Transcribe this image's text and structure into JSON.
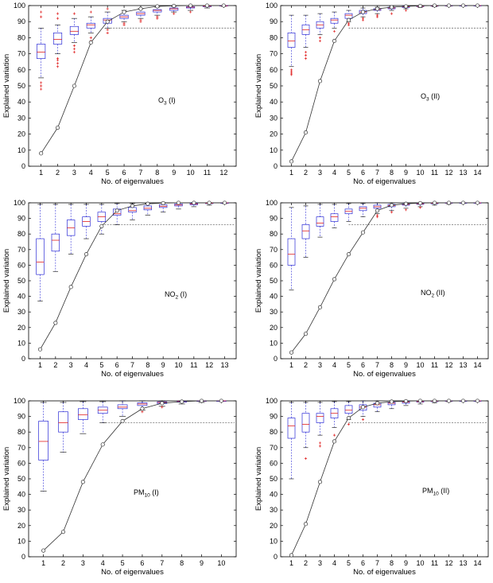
{
  "chart_data": [
    {
      "type": "box",
      "label": {
        "main": "O",
        "sub": "3",
        "suffix": " (I)"
      },
      "xlabel": "No. of eigenvalues",
      "ylabel": "Explained variation",
      "ylim": [
        0,
        100
      ],
      "yticks": [
        0,
        10,
        20,
        30,
        40,
        50,
        60,
        70,
        80,
        90,
        100
      ],
      "x": [
        1,
        2,
        3,
        4,
        5,
        6,
        7,
        8,
        9,
        10,
        11,
        12
      ],
      "threshold": 86,
      "boxes": [
        {
          "min": 55,
          "q1": 67,
          "median": 71,
          "q3": 76,
          "max": 86,
          "outliers": [
            48,
            50,
            52,
            93,
            96
          ]
        },
        {
          "min": 70,
          "q1": 76,
          "median": 79,
          "q3": 83,
          "max": 88,
          "outliers": [
            62,
            64,
            66,
            67,
            92,
            95
          ]
        },
        {
          "min": 77,
          "q1": 82,
          "median": 84,
          "q3": 87,
          "max": 92,
          "outliers": [
            71,
            73,
            75,
            95
          ]
        },
        {
          "min": 83,
          "q1": 86,
          "median": 88,
          "q3": 89,
          "max": 93,
          "outliers": [
            78,
            80,
            96
          ]
        },
        {
          "min": 86,
          "q1": 89,
          "median": 91,
          "q3": 92,
          "max": 96,
          "outliers": [
            83,
            85,
            98
          ]
        },
        {
          "min": 90,
          "q1": 92,
          "median": 93,
          "q3": 94,
          "max": 97,
          "outliers": [
            88,
            89
          ]
        },
        {
          "min": 92,
          "q1": 94,
          "median": 95,
          "q3": 96,
          "max": 98,
          "outliers": [
            90,
            91
          ]
        },
        {
          "min": 94,
          "q1": 96,
          "median": 97,
          "q3": 97.5,
          "max": 99,
          "outliers": [
            92,
            93
          ]
        },
        {
          "min": 96,
          "q1": 97,
          "median": 98,
          "q3": 98.5,
          "max": 99.5,
          "outliers": [
            95
          ]
        },
        {
          "min": 97,
          "q1": 98.5,
          "median": 99,
          "q3": 99.3,
          "max": 99.8,
          "outliers": [
            96
          ]
        },
        {
          "min": 98.5,
          "q1": 99.3,
          "median": 99.6,
          "q3": 99.8,
          "max": 100,
          "outliers": []
        },
        {
          "min": 99.5,
          "q1": 99.8,
          "median": 99.9,
          "q3": 100,
          "max": 100,
          "outliers": []
        }
      ],
      "curve": [
        8,
        24,
        50,
        77,
        90,
        96,
        98,
        99.5,
        99.8,
        100,
        100,
        100
      ]
    },
    {
      "type": "box",
      "label": {
        "main": "O",
        "sub": "3",
        "suffix": " (II)"
      },
      "xlabel": "No. of eigenvalues",
      "ylabel": "Explained variation",
      "ylim": [
        0,
        100
      ],
      "yticks": [
        0,
        10,
        20,
        30,
        40,
        50,
        60,
        70,
        80,
        90,
        100
      ],
      "x": [
        1,
        2,
        3,
        4,
        5,
        6,
        7,
        8,
        9,
        10,
        11,
        12,
        13,
        14
      ],
      "threshold": 86,
      "boxes": [
        {
          "min": 62,
          "q1": 74,
          "median": 78,
          "q3": 83,
          "max": 94,
          "outliers": [
            57,
            58,
            59,
            60
          ]
        },
        {
          "min": 74,
          "q1": 82,
          "median": 85,
          "q3": 88,
          "max": 94,
          "outliers": [
            67,
            69,
            71
          ]
        },
        {
          "min": 82,
          "q1": 86,
          "median": 88,
          "q3": 90,
          "max": 95,
          "outliers": [
            78,
            80
          ]
        },
        {
          "min": 86,
          "q1": 89,
          "median": 91,
          "q3": 92,
          "max": 96,
          "outliers": [
            84
          ]
        },
        {
          "min": 90,
          "q1": 92,
          "median": 94,
          "q3": 95,
          "max": 97,
          "outliers": [
            88,
            89
          ]
        },
        {
          "min": 93,
          "q1": 95,
          "median": 96,
          "q3": 97,
          "max": 98.5,
          "outliers": [
            91,
            92
          ]
        },
        {
          "min": 95,
          "q1": 97,
          "median": 97.5,
          "q3": 98,
          "max": 99,
          "outliers": [
            93,
            94
          ]
        },
        {
          "min": 97,
          "q1": 98,
          "median": 98.5,
          "q3": 99,
          "max": 99.5,
          "outliers": [
            95
          ]
        },
        {
          "min": 98,
          "q1": 98.8,
          "median": 99.2,
          "q3": 99.5,
          "max": 99.8,
          "outliers": [
            97
          ]
        },
        {
          "min": 98.8,
          "q1": 99.3,
          "median": 99.5,
          "q3": 99.7,
          "max": 100,
          "outliers": []
        },
        {
          "min": 99.2,
          "q1": 99.6,
          "median": 99.8,
          "q3": 99.9,
          "max": 100,
          "outliers": []
        },
        {
          "min": 99.6,
          "q1": 99.8,
          "median": 99.9,
          "q3": 100,
          "max": 100,
          "outliers": []
        },
        {
          "min": 99.8,
          "q1": 99.9,
          "median": 100,
          "q3": 100,
          "max": 100,
          "outliers": []
        },
        {
          "min": 99.9,
          "q1": 100,
          "median": 100,
          "q3": 100,
          "max": 100,
          "outliers": []
        }
      ],
      "curve": [
        3,
        21,
        53,
        78,
        91,
        96,
        98,
        99,
        99.5,
        99.8,
        100,
        100,
        100,
        100
      ]
    },
    {
      "type": "box",
      "label": {
        "main": "NO",
        "sub": "2",
        "suffix": " (I)"
      },
      "xlabel": "No. of eigenvalues",
      "ylabel": "Explained variation",
      "ylim": [
        0,
        100
      ],
      "yticks": [
        0,
        10,
        20,
        30,
        40,
        50,
        60,
        70,
        80,
        90,
        100
      ],
      "x": [
        1,
        2,
        3,
        4,
        5,
        6,
        7,
        8,
        9,
        10,
        11,
        12,
        13
      ],
      "threshold": 86,
      "boxes": [
        {
          "min": 37,
          "q1": 54,
          "median": 62,
          "q3": 77,
          "max": 99,
          "outliers": []
        },
        {
          "min": 56,
          "q1": 69,
          "median": 76,
          "q3": 80,
          "max": 99,
          "outliers": []
        },
        {
          "min": 67,
          "q1": 79,
          "median": 84,
          "q3": 89,
          "max": 99,
          "outliers": []
        },
        {
          "min": 77,
          "q1": 85,
          "median": 88,
          "q3": 91,
          "max": 99,
          "outliers": []
        },
        {
          "min": 80,
          "q1": 88,
          "median": 91,
          "q3": 94,
          "max": 99,
          "outliers": []
        },
        {
          "min": 86,
          "q1": 92,
          "median": 93,
          "q3": 96,
          "max": 99.5,
          "outliers": []
        },
        {
          "min": 89,
          "q1": 94,
          "median": 95,
          "q3": 97,
          "max": 99.5,
          "outliers": []
        },
        {
          "min": 92,
          "q1": 95.5,
          "median": 96.5,
          "q3": 98,
          "max": 99.7,
          "outliers": []
        },
        {
          "min": 94,
          "q1": 97,
          "median": 97.8,
          "q3": 98.8,
          "max": 99.8,
          "outliers": []
        },
        {
          "min": 96,
          "q1": 98,
          "median": 98.6,
          "q3": 99.3,
          "max": 100,
          "outliers": []
        },
        {
          "min": 97.5,
          "q1": 98.8,
          "median": 99.3,
          "q3": 99.6,
          "max": 100,
          "outliers": []
        },
        {
          "min": 98.5,
          "q1": 99.5,
          "median": 99.7,
          "q3": 99.9,
          "max": 100,
          "outliers": []
        },
        {
          "min": 99.5,
          "q1": 99.9,
          "median": 100,
          "q3": 100,
          "max": 100,
          "outliers": []
        }
      ],
      "curve": [
        6,
        23,
        46,
        67,
        85,
        95,
        98,
        99.4,
        99.8,
        100,
        100,
        100,
        100
      ]
    },
    {
      "type": "box",
      "label": {
        "main": "NO",
        "sub": "2",
        "suffix": " (II)"
      },
      "xlabel": "No. of eigenvalues",
      "ylabel": "Explained variation",
      "ylim": [
        0,
        100
      ],
      "yticks": [
        0,
        10,
        20,
        30,
        40,
        50,
        60,
        70,
        80,
        90,
        100
      ],
      "x": [
        1,
        2,
        3,
        4,
        5,
        6,
        7,
        8,
        9,
        10,
        11,
        12,
        13,
        14
      ],
      "threshold": 86,
      "boxes": [
        {
          "min": 44,
          "q1": 60,
          "median": 67,
          "q3": 77,
          "max": 97,
          "outliers": []
        },
        {
          "min": 65,
          "q1": 77,
          "median": 82,
          "q3": 86,
          "max": 98,
          "outliers": []
        },
        {
          "min": 78,
          "q1": 85,
          "median": 87,
          "q3": 91,
          "max": 99,
          "outliers": []
        },
        {
          "min": 84,
          "q1": 88,
          "median": 91,
          "q3": 93,
          "max": 99,
          "outliers": []
        },
        {
          "min": 88,
          "q1": 93,
          "median": 94.5,
          "q3": 96,
          "max": 99.5,
          "outliers": []
        },
        {
          "min": 91,
          "q1": 95,
          "median": 96.5,
          "q3": 97.5,
          "max": 99.5,
          "outliers": []
        },
        {
          "min": 93,
          "q1": 96.5,
          "median": 97.5,
          "q3": 98.5,
          "max": 100,
          "outliers": [
            91,
            92
          ]
        },
        {
          "min": 95,
          "q1": 97.5,
          "median": 98.3,
          "q3": 99,
          "max": 100,
          "outliers": [
            94
          ]
        },
        {
          "min": 96.5,
          "q1": 98.5,
          "median": 99,
          "q3": 99.4,
          "max": 100,
          "outliers": [
            95.5
          ]
        },
        {
          "min": 97.5,
          "q1": 99,
          "median": 99.4,
          "q3": 99.7,
          "max": 100,
          "outliers": [
            97
          ]
        },
        {
          "min": 98.5,
          "q1": 99.4,
          "median": 99.7,
          "q3": 99.9,
          "max": 100,
          "outliers": []
        },
        {
          "min": 99,
          "q1": 99.7,
          "median": 99.9,
          "q3": 100,
          "max": 100,
          "outliers": []
        },
        {
          "min": 99.6,
          "q1": 99.9,
          "median": 100,
          "q3": 100,
          "max": 100,
          "outliers": []
        },
        {
          "min": 99.8,
          "q1": 100,
          "median": 100,
          "q3": 100,
          "max": 100,
          "outliers": []
        }
      ],
      "curve": [
        4,
        16,
        33,
        51,
        67,
        81,
        95,
        98.5,
        99.4,
        99.8,
        100,
        100,
        100,
        100
      ]
    },
    {
      "type": "box",
      "label": {
        "main": "PM",
        "sub": "10",
        "suffix": " (I)"
      },
      "xlabel": "No. of eigenvalues",
      "ylabel": "Explained variation",
      "ylim": [
        0,
        100
      ],
      "yticks": [
        0,
        10,
        20,
        30,
        40,
        50,
        60,
        70,
        80,
        90,
        100
      ],
      "x": [
        1,
        2,
        3,
        4,
        5,
        6,
        7,
        8,
        9,
        10
      ],
      "threshold": 86,
      "boxes": [
        {
          "min": 42,
          "q1": 62,
          "median": 74,
          "q3": 87,
          "max": 99,
          "outliers": []
        },
        {
          "min": 67,
          "q1": 80,
          "median": 86,
          "q3": 93,
          "max": 99,
          "outliers": []
        },
        {
          "min": 79,
          "q1": 88,
          "median": 91,
          "q3": 95,
          "max": 99.5,
          "outliers": []
        },
        {
          "min": 86,
          "q1": 92,
          "median": 94,
          "q3": 96,
          "max": 99.5,
          "outliers": []
        },
        {
          "min": 90,
          "q1": 95,
          "median": 96,
          "q3": 97.5,
          "max": 100,
          "outliers": []
        },
        {
          "min": 94,
          "q1": 97,
          "median": 98,
          "q3": 98.8,
          "max": 100,
          "outliers": [
            93
          ]
        },
        {
          "min": 96.5,
          "q1": 98.3,
          "median": 99,
          "q3": 99.4,
          "max": 100,
          "outliers": [
            96
          ]
        },
        {
          "min": 98,
          "q1": 99.2,
          "median": 99.6,
          "q3": 99.8,
          "max": 100,
          "outliers": []
        },
        {
          "min": 99,
          "q1": 99.7,
          "median": 99.9,
          "q3": 100,
          "max": 100,
          "outliers": []
        },
        {
          "min": 99.7,
          "q1": 100,
          "median": 100,
          "q3": 100,
          "max": 100,
          "outliers": []
        }
      ],
      "curve": [
        4,
        16,
        48,
        72,
        87,
        95,
        98.5,
        99.5,
        100,
        100
      ]
    },
    {
      "type": "box",
      "label": {
        "main": "PM",
        "sub": "10",
        "suffix": " (II)"
      },
      "xlabel": "No. of eigenvalues",
      "ylabel": "Explained variation",
      "ylim": [
        0,
        100
      ],
      "yticks": [
        0,
        10,
        20,
        30,
        40,
        50,
        60,
        70,
        80,
        90,
        100
      ],
      "x": [
        1,
        2,
        3,
        4,
        5,
        6,
        7,
        8,
        9,
        10,
        11,
        12,
        13,
        14
      ],
      "threshold": 86,
      "boxes": [
        {
          "min": 50,
          "q1": 76,
          "median": 84,
          "q3": 89,
          "max": 99,
          "outliers": []
        },
        {
          "min": 70,
          "q1": 80,
          "median": 85,
          "q3": 92,
          "max": 99,
          "outliers": [
            63
          ]
        },
        {
          "min": 78,
          "q1": 86,
          "median": 90,
          "q3": 92,
          "max": 99,
          "outliers": [
            71,
            73
          ]
        },
        {
          "min": 83,
          "q1": 89,
          "median": 92,
          "q3": 95,
          "max": 99.5,
          "outliers": [
            78
          ]
        },
        {
          "min": 88,
          "q1": 92,
          "median": 94,
          "q3": 97,
          "max": 99.5,
          "outliers": [
            85
          ]
        },
        {
          "min": 90,
          "q1": 94,
          "median": 96,
          "q3": 97.5,
          "max": 100,
          "outliers": [
            88
          ]
        },
        {
          "min": 93,
          "q1": 96,
          "median": 97.5,
          "q3": 98.5,
          "max": 100,
          "outliers": []
        },
        {
          "min": 95,
          "q1": 97.5,
          "median": 98.5,
          "q3": 99,
          "max": 100,
          "outliers": []
        },
        {
          "min": 97,
          "q1": 98.5,
          "median": 99.2,
          "q3": 99.6,
          "max": 100,
          "outliers": []
        },
        {
          "min": 98,
          "q1": 99.2,
          "median": 99.5,
          "q3": 99.8,
          "max": 100,
          "outliers": []
        },
        {
          "min": 98.8,
          "q1": 99.5,
          "median": 99.8,
          "q3": 99.9,
          "max": 100,
          "outliers": []
        },
        {
          "min": 99.4,
          "q1": 99.8,
          "median": 99.9,
          "q3": 100,
          "max": 100,
          "outliers": []
        },
        {
          "min": 99.7,
          "q1": 99.9,
          "median": 100,
          "q3": 100,
          "max": 100,
          "outliers": []
        },
        {
          "min": 99.9,
          "q1": 100,
          "median": 100,
          "q3": 100,
          "max": 100,
          "outliers": []
        }
      ],
      "curve": [
        1,
        21,
        48,
        74,
        89,
        96,
        98.5,
        99.5,
        99.8,
        100,
        100,
        100,
        100,
        100
      ]
    }
  ],
  "colors": {
    "box": "#2b2bd6",
    "median": "#e02020",
    "whisker": "#2b2bd6",
    "outlier": "#e02020",
    "curve": "#333333",
    "threshold": "#555555",
    "axes": "#000000"
  }
}
